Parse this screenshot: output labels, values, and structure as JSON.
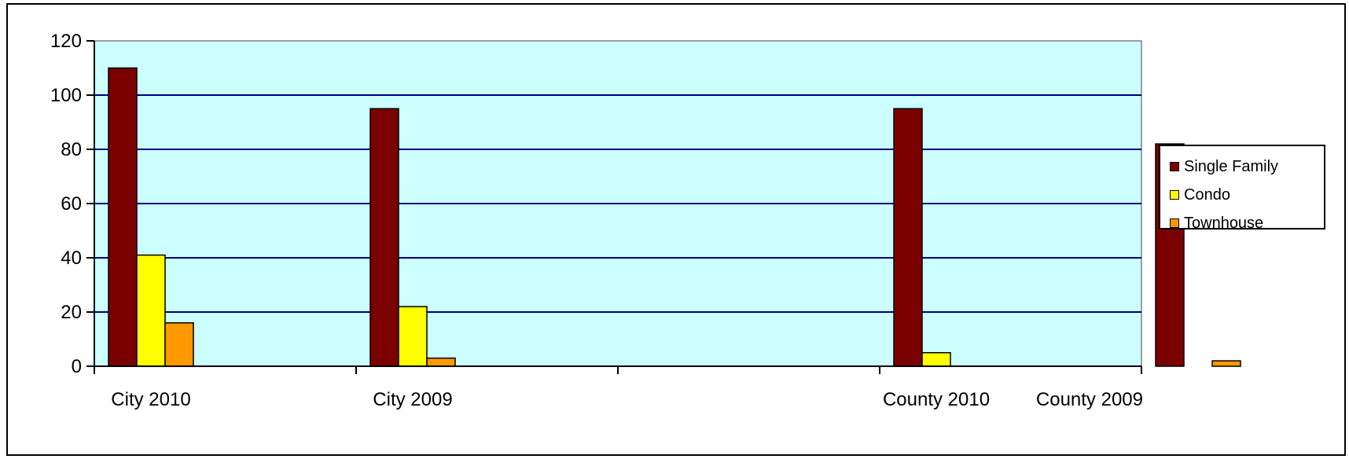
{
  "chart_data": {
    "type": "bar",
    "categories": [
      "City 2010",
      "City 2009",
      "",
      "County 2010",
      "County 2009"
    ],
    "series": [
      {
        "name": "Single Family",
        "values": [
          110,
          95,
          0,
          95,
          82
        ],
        "color": "#7b0000"
      },
      {
        "name": "Condo",
        "values": [
          41,
          22,
          0,
          5,
          0
        ],
        "color": "#ffff00"
      },
      {
        "name": "Townhouse",
        "values": [
          16,
          3,
          0,
          0,
          2
        ],
        "color": "#ff9900"
      }
    ],
    "yticks": [
      0,
      20,
      40,
      60,
      80,
      100,
      120
    ],
    "ylim": [
      0,
      120
    ],
    "title": "",
    "xlabel": "",
    "ylabel": "",
    "grid": true,
    "legend_position": "right",
    "plot_background": "#ccffff",
    "grid_color": "#000080"
  }
}
